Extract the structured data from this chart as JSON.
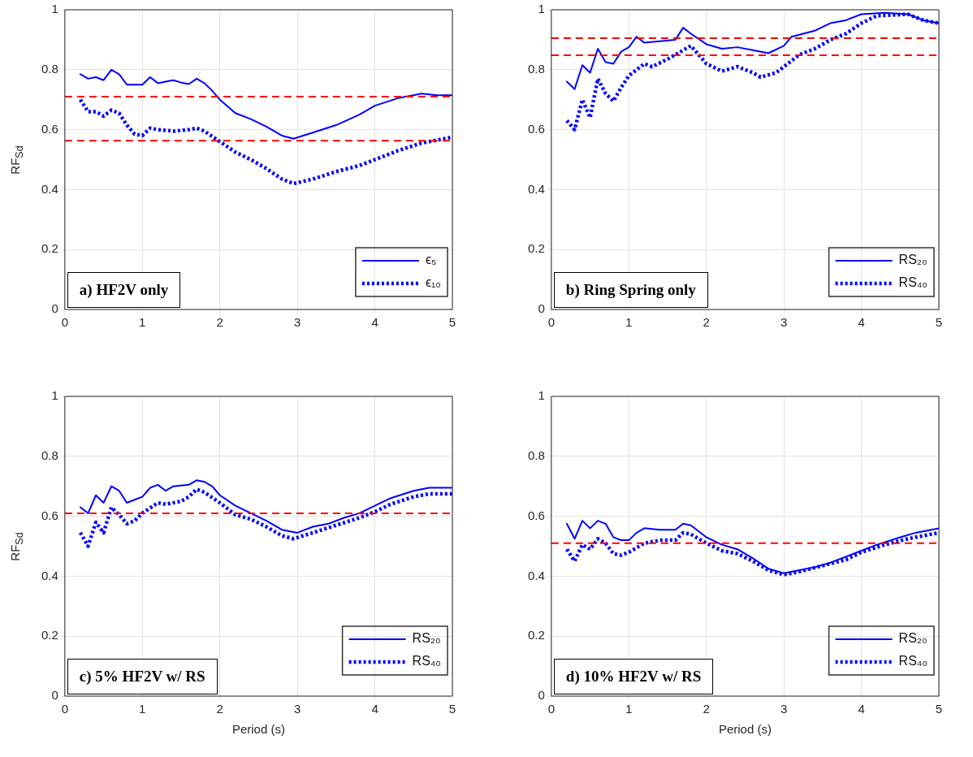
{
  "chart_data": [
    {
      "type": "line",
      "ylabel": "RF$_{Sd}$",
      "xlim": [
        0,
        5
      ],
      "xticks": [
        0,
        1,
        2,
        3,
        4,
        5
      ],
      "ylim": [
        0,
        1
      ],
      "yticks": [
        0,
        0.2,
        0.4,
        0.6,
        0.8,
        1
      ],
      "grid": true,
      "legend": "bottom right",
      "marker": "none",
      "annotations": [
        "a) HF2V only"
      ],
      "ref_lines": [
        {
          "axis": "y",
          "value": 0.71,
          "color": "#ff0000",
          "line_style": "dashed"
        },
        {
          "axis": "y",
          "value": 0.563,
          "color": "#ff0000",
          "line_style": "dashed"
        }
      ],
      "series": [
        {
          "name": "ϵ₅",
          "color": "#0000ff",
          "line_style": "solid",
          "x": [
            0.2,
            0.3,
            0.4,
            0.5,
            0.6,
            0.7,
            0.8,
            0.9,
            1.0,
            1.1,
            1.2,
            1.3,
            1.4,
            1.5,
            1.6,
            1.7,
            1.8,
            1.9,
            2.0,
            2.2,
            2.4,
            2.6,
            2.8,
            2.95,
            3.2,
            3.5,
            3.8,
            4.0,
            4.3,
            4.6,
            4.8,
            5.0
          ],
          "values": [
            0.785,
            0.77,
            0.775,
            0.765,
            0.8,
            0.785,
            0.75,
            0.75,
            0.75,
            0.775,
            0.755,
            0.76,
            0.765,
            0.757,
            0.752,
            0.77,
            0.755,
            0.73,
            0.7,
            0.655,
            0.635,
            0.61,
            0.58,
            0.57,
            0.59,
            0.615,
            0.65,
            0.68,
            0.705,
            0.72,
            0.715,
            0.715
          ]
        },
        {
          "name": "ϵ₁₀",
          "color": "#0000ff",
          "line_style": "dotted",
          "x": [
            0.2,
            0.3,
            0.4,
            0.5,
            0.6,
            0.7,
            0.8,
            0.9,
            1.0,
            1.1,
            1.2,
            1.4,
            1.6,
            1.7,
            1.8,
            2.0,
            2.2,
            2.4,
            2.6,
            2.8,
            2.95,
            3.2,
            3.5,
            3.8,
            4.0,
            4.3,
            4.6,
            4.8,
            5.0
          ],
          "values": [
            0.7,
            0.66,
            0.66,
            0.645,
            0.665,
            0.655,
            0.615,
            0.585,
            0.58,
            0.605,
            0.6,
            0.595,
            0.6,
            0.605,
            0.595,
            0.56,
            0.525,
            0.5,
            0.47,
            0.435,
            0.42,
            0.435,
            0.46,
            0.48,
            0.5,
            0.53,
            0.555,
            0.565,
            0.575
          ]
        }
      ]
    },
    {
      "type": "line",
      "xlim": [
        0,
        5
      ],
      "xticks": [
        0,
        1,
        2,
        3,
        4,
        5
      ],
      "ylim": [
        0,
        1
      ],
      "yticks": [
        0,
        0.2,
        0.4,
        0.6,
        0.8,
        1
      ],
      "grid": true,
      "legend": "bottom right",
      "marker": "none",
      "annotations": [
        "b) Ring Spring only"
      ],
      "ref_lines": [
        {
          "axis": "y",
          "value": 0.905,
          "color": "#ff0000",
          "line_style": "dashed"
        },
        {
          "axis": "y",
          "value": 0.848,
          "color": "#ff0000",
          "line_style": "dashed"
        }
      ],
      "series": [
        {
          "name": "RS₂₀",
          "color": "#0000ff",
          "line_style": "solid",
          "x": [
            0.2,
            0.3,
            0.4,
            0.5,
            0.6,
            0.7,
            0.8,
            0.9,
            1.0,
            1.1,
            1.2,
            1.4,
            1.6,
            1.7,
            1.8,
            2.0,
            2.2,
            2.4,
            2.6,
            2.8,
            3.0,
            3.1,
            3.4,
            3.6,
            3.8,
            4.0,
            4.3,
            4.6,
            4.8,
            5.0
          ],
          "values": [
            0.76,
            0.735,
            0.815,
            0.79,
            0.87,
            0.825,
            0.82,
            0.86,
            0.875,
            0.91,
            0.89,
            0.895,
            0.9,
            0.94,
            0.92,
            0.885,
            0.87,
            0.875,
            0.865,
            0.855,
            0.88,
            0.91,
            0.93,
            0.955,
            0.965,
            0.985,
            0.99,
            0.985,
            0.965,
            0.955
          ]
        },
        {
          "name": "RS₄₀",
          "color": "#0000ff",
          "line_style": "dotted",
          "x": [
            0.2,
            0.3,
            0.4,
            0.5,
            0.6,
            0.7,
            0.8,
            0.9,
            1.0,
            1.2,
            1.3,
            1.5,
            1.6,
            1.8,
            2.0,
            2.2,
            2.4,
            2.6,
            2.7,
            2.9,
            3.0,
            3.2,
            3.4,
            3.6,
            3.8,
            4.0,
            4.2,
            4.6,
            4.8,
            5.0
          ],
          "values": [
            0.63,
            0.6,
            0.7,
            0.64,
            0.77,
            0.72,
            0.695,
            0.74,
            0.78,
            0.82,
            0.81,
            0.835,
            0.85,
            0.88,
            0.82,
            0.795,
            0.81,
            0.79,
            0.775,
            0.79,
            0.81,
            0.85,
            0.87,
            0.9,
            0.92,
            0.955,
            0.98,
            0.985,
            0.965,
            0.955
          ]
        }
      ]
    },
    {
      "type": "line",
      "xlabel": "Period (s)",
      "ylabel": "RF$_{Sd}$",
      "xlim": [
        0,
        5
      ],
      "xticks": [
        0,
        1,
        2,
        3,
        4,
        5
      ],
      "ylim": [
        0,
        1
      ],
      "yticks": [
        0,
        0.2,
        0.4,
        0.6,
        0.8,
        1
      ],
      "grid": true,
      "legend": "bottom right",
      "marker": "none",
      "annotations": [
        "c) 5% HF2V w/ RS"
      ],
      "ref_lines": [
        {
          "axis": "y",
          "value": 0.61,
          "color": "#ff0000",
          "line_style": "dashed"
        }
      ],
      "series": [
        {
          "name": "RS₂₀",
          "color": "#0000ff",
          "line_style": "solid",
          "x": [
            0.2,
            0.3,
            0.4,
            0.5,
            0.6,
            0.7,
            0.8,
            0.9,
            1.0,
            1.1,
            1.2,
            1.3,
            1.4,
            1.6,
            1.7,
            1.8,
            1.9,
            2.0,
            2.2,
            2.4,
            2.6,
            2.8,
            3.0,
            3.2,
            3.4,
            3.6,
            3.8,
            4.0,
            4.2,
            4.5,
            4.7,
            5.0
          ],
          "values": [
            0.63,
            0.61,
            0.67,
            0.645,
            0.7,
            0.685,
            0.645,
            0.655,
            0.665,
            0.695,
            0.705,
            0.685,
            0.7,
            0.705,
            0.72,
            0.715,
            0.7,
            0.67,
            0.635,
            0.61,
            0.585,
            0.555,
            0.545,
            0.565,
            0.575,
            0.595,
            0.61,
            0.635,
            0.66,
            0.685,
            0.695,
            0.695
          ]
        },
        {
          "name": "RS₄₀",
          "color": "#0000ff",
          "line_style": "dotted",
          "x": [
            0.2,
            0.3,
            0.4,
            0.5,
            0.6,
            0.7,
            0.8,
            0.9,
            1.0,
            1.2,
            1.3,
            1.5,
            1.6,
            1.7,
            1.8,
            2.0,
            2.2,
            2.4,
            2.6,
            2.8,
            2.95,
            3.2,
            3.5,
            3.8,
            4.0,
            4.2,
            4.5,
            4.7,
            5.0
          ],
          "values": [
            0.545,
            0.5,
            0.58,
            0.545,
            0.63,
            0.605,
            0.575,
            0.585,
            0.61,
            0.645,
            0.64,
            0.65,
            0.665,
            0.69,
            0.68,
            0.645,
            0.605,
            0.59,
            0.565,
            0.535,
            0.525,
            0.545,
            0.57,
            0.595,
            0.615,
            0.64,
            0.665,
            0.675,
            0.675
          ]
        }
      ]
    },
    {
      "type": "line",
      "xlabel": "Period (s)",
      "xlim": [
        0,
        5
      ],
      "xticks": [
        0,
        1,
        2,
        3,
        4,
        5
      ],
      "ylim": [
        0,
        1
      ],
      "yticks": [
        0,
        0.2,
        0.4,
        0.6,
        0.8,
        1
      ],
      "grid": true,
      "legend": "bottom right",
      "marker": "none",
      "annotations": [
        "d) 10% HF2V w/ RS"
      ],
      "ref_lines": [
        {
          "axis": "y",
          "value": 0.51,
          "color": "#ff0000",
          "line_style": "dashed"
        }
      ],
      "series": [
        {
          "name": "RS₂₀",
          "color": "#0000ff",
          "line_style": "solid",
          "x": [
            0.2,
            0.3,
            0.4,
            0.5,
            0.6,
            0.7,
            0.8,
            0.9,
            1.0,
            1.1,
            1.2,
            1.4,
            1.6,
            1.7,
            1.8,
            2.0,
            2.2,
            2.4,
            2.6,
            2.8,
            3.0,
            3.2,
            3.4,
            3.6,
            3.8,
            4.0,
            4.2,
            4.5,
            4.7,
            5.0
          ],
          "values": [
            0.575,
            0.525,
            0.585,
            0.56,
            0.585,
            0.575,
            0.53,
            0.52,
            0.52,
            0.545,
            0.56,
            0.555,
            0.555,
            0.575,
            0.57,
            0.53,
            0.505,
            0.49,
            0.46,
            0.425,
            0.41,
            0.42,
            0.43,
            0.445,
            0.465,
            0.485,
            0.505,
            0.53,
            0.545,
            0.56
          ]
        },
        {
          "name": "RS₄₀",
          "color": "#0000ff",
          "line_style": "dotted",
          "x": [
            0.2,
            0.3,
            0.4,
            0.5,
            0.6,
            0.7,
            0.8,
            0.9,
            1.0,
            1.2,
            1.4,
            1.6,
            1.7,
            1.8,
            2.0,
            2.2,
            2.4,
            2.6,
            2.8,
            3.0,
            3.2,
            3.5,
            3.8,
            4.0,
            4.3,
            4.6,
            5.0
          ],
          "values": [
            0.49,
            0.45,
            0.505,
            0.49,
            0.525,
            0.51,
            0.475,
            0.47,
            0.48,
            0.51,
            0.52,
            0.52,
            0.545,
            0.54,
            0.51,
            0.485,
            0.475,
            0.45,
            0.42,
            0.405,
            0.415,
            0.435,
            0.455,
            0.48,
            0.505,
            0.525,
            0.545
          ]
        }
      ]
    }
  ]
}
